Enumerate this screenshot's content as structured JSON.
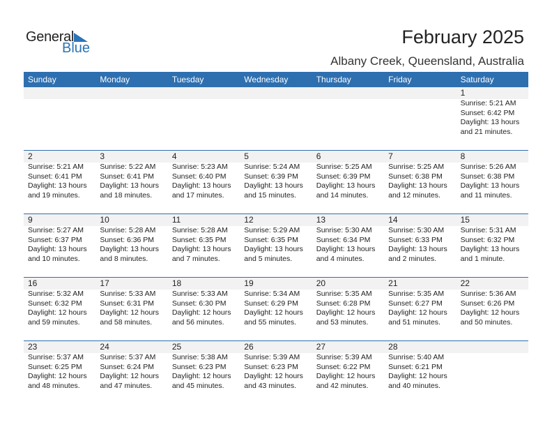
{
  "logo": {
    "text1": "General",
    "text2": "Blue"
  },
  "header": {
    "title": "February 2025",
    "location": "Albany Creek, Queensland, Australia"
  },
  "colors": {
    "accent": "#2e6fb0",
    "strip": "#f2f2f2"
  },
  "days": [
    "Sunday",
    "Monday",
    "Tuesday",
    "Wednesday",
    "Thursday",
    "Friday",
    "Saturday"
  ],
  "weeks": [
    [
      null,
      null,
      null,
      null,
      null,
      null,
      {
        "day": "1",
        "sunrise": "Sunrise: 5:21 AM",
        "sunset": "Sunset: 6:42 PM",
        "daylight": "Daylight: 13 hours",
        "minutes": "and 21 minutes."
      }
    ],
    [
      {
        "day": "2",
        "sunrise": "Sunrise: 5:21 AM",
        "sunset": "Sunset: 6:41 PM",
        "daylight": "Daylight: 13 hours",
        "minutes": "and 19 minutes."
      },
      {
        "day": "3",
        "sunrise": "Sunrise: 5:22 AM",
        "sunset": "Sunset: 6:41 PM",
        "daylight": "Daylight: 13 hours",
        "minutes": "and 18 minutes."
      },
      {
        "day": "4",
        "sunrise": "Sunrise: 5:23 AM",
        "sunset": "Sunset: 6:40 PM",
        "daylight": "Daylight: 13 hours",
        "minutes": "and 17 minutes."
      },
      {
        "day": "5",
        "sunrise": "Sunrise: 5:24 AM",
        "sunset": "Sunset: 6:39 PM",
        "daylight": "Daylight: 13 hours",
        "minutes": "and 15 minutes."
      },
      {
        "day": "6",
        "sunrise": "Sunrise: 5:25 AM",
        "sunset": "Sunset: 6:39 PM",
        "daylight": "Daylight: 13 hours",
        "minutes": "and 14 minutes."
      },
      {
        "day": "7",
        "sunrise": "Sunrise: 5:25 AM",
        "sunset": "Sunset: 6:38 PM",
        "daylight": "Daylight: 13 hours",
        "minutes": "and 12 minutes."
      },
      {
        "day": "8",
        "sunrise": "Sunrise: 5:26 AM",
        "sunset": "Sunset: 6:38 PM",
        "daylight": "Daylight: 13 hours",
        "minutes": "and 11 minutes."
      }
    ],
    [
      {
        "day": "9",
        "sunrise": "Sunrise: 5:27 AM",
        "sunset": "Sunset: 6:37 PM",
        "daylight": "Daylight: 13 hours",
        "minutes": "and 10 minutes."
      },
      {
        "day": "10",
        "sunrise": "Sunrise: 5:28 AM",
        "sunset": "Sunset: 6:36 PM",
        "daylight": "Daylight: 13 hours",
        "minutes": "and 8 minutes."
      },
      {
        "day": "11",
        "sunrise": "Sunrise: 5:28 AM",
        "sunset": "Sunset: 6:35 PM",
        "daylight": "Daylight: 13 hours",
        "minutes": "and 7 minutes."
      },
      {
        "day": "12",
        "sunrise": "Sunrise: 5:29 AM",
        "sunset": "Sunset: 6:35 PM",
        "daylight": "Daylight: 13 hours",
        "minutes": "and 5 minutes."
      },
      {
        "day": "13",
        "sunrise": "Sunrise: 5:30 AM",
        "sunset": "Sunset: 6:34 PM",
        "daylight": "Daylight: 13 hours",
        "minutes": "and 4 minutes."
      },
      {
        "day": "14",
        "sunrise": "Sunrise: 5:30 AM",
        "sunset": "Sunset: 6:33 PM",
        "daylight": "Daylight: 13 hours",
        "minutes": "and 2 minutes."
      },
      {
        "day": "15",
        "sunrise": "Sunrise: 5:31 AM",
        "sunset": "Sunset: 6:32 PM",
        "daylight": "Daylight: 13 hours",
        "minutes": "and 1 minute."
      }
    ],
    [
      {
        "day": "16",
        "sunrise": "Sunrise: 5:32 AM",
        "sunset": "Sunset: 6:32 PM",
        "daylight": "Daylight: 12 hours",
        "minutes": "and 59 minutes."
      },
      {
        "day": "17",
        "sunrise": "Sunrise: 5:33 AM",
        "sunset": "Sunset: 6:31 PM",
        "daylight": "Daylight: 12 hours",
        "minutes": "and 58 minutes."
      },
      {
        "day": "18",
        "sunrise": "Sunrise: 5:33 AM",
        "sunset": "Sunset: 6:30 PM",
        "daylight": "Daylight: 12 hours",
        "minutes": "and 56 minutes."
      },
      {
        "day": "19",
        "sunrise": "Sunrise: 5:34 AM",
        "sunset": "Sunset: 6:29 PM",
        "daylight": "Daylight: 12 hours",
        "minutes": "and 55 minutes."
      },
      {
        "day": "20",
        "sunrise": "Sunrise: 5:35 AM",
        "sunset": "Sunset: 6:28 PM",
        "daylight": "Daylight: 12 hours",
        "minutes": "and 53 minutes."
      },
      {
        "day": "21",
        "sunrise": "Sunrise: 5:35 AM",
        "sunset": "Sunset: 6:27 PM",
        "daylight": "Daylight: 12 hours",
        "minutes": "and 51 minutes."
      },
      {
        "day": "22",
        "sunrise": "Sunrise: 5:36 AM",
        "sunset": "Sunset: 6:26 PM",
        "daylight": "Daylight: 12 hours",
        "minutes": "and 50 minutes."
      }
    ],
    [
      {
        "day": "23",
        "sunrise": "Sunrise: 5:37 AM",
        "sunset": "Sunset: 6:25 PM",
        "daylight": "Daylight: 12 hours",
        "minutes": "and 48 minutes."
      },
      {
        "day": "24",
        "sunrise": "Sunrise: 5:37 AM",
        "sunset": "Sunset: 6:24 PM",
        "daylight": "Daylight: 12 hours",
        "minutes": "and 47 minutes."
      },
      {
        "day": "25",
        "sunrise": "Sunrise: 5:38 AM",
        "sunset": "Sunset: 6:23 PM",
        "daylight": "Daylight: 12 hours",
        "minutes": "and 45 minutes."
      },
      {
        "day": "26",
        "sunrise": "Sunrise: 5:39 AM",
        "sunset": "Sunset: 6:23 PM",
        "daylight": "Daylight: 12 hours",
        "minutes": "and 43 minutes."
      },
      {
        "day": "27",
        "sunrise": "Sunrise: 5:39 AM",
        "sunset": "Sunset: 6:22 PM",
        "daylight": "Daylight: 12 hours",
        "minutes": "and 42 minutes."
      },
      {
        "day": "28",
        "sunrise": "Sunrise: 5:40 AM",
        "sunset": "Sunset: 6:21 PM",
        "daylight": "Daylight: 12 hours",
        "minutes": "and 40 minutes."
      },
      null
    ]
  ]
}
